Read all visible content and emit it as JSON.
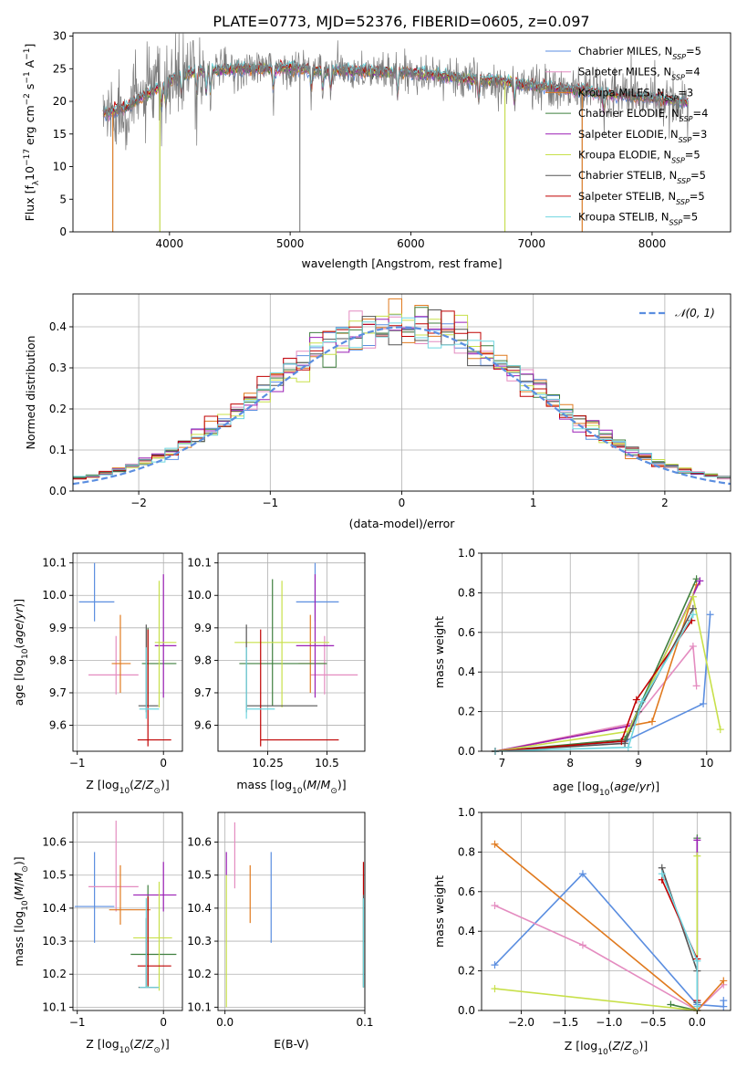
{
  "figure_title": "PLATE=0773, MJD=52376, FIBERID=0605, z=0.097",
  "colors": {
    "Chabrier MILES": "#5b8ee0",
    "Salpeter MILES": "#e48cc0",
    "Kroupa MILES": "#e07a1f",
    "Chabrier ELODIE": "#3f7f3f",
    "Salpeter ELODIE": "#9b1fb5",
    "Kroupa ELODIE": "#c8e04a",
    "Chabrier STELIB": "#555555",
    "Salpeter STELIB": "#c00000",
    "Kroupa STELIB": "#6fd6e0",
    "gaussian": "#5b8ee0"
  },
  "chart_data": [
    {
      "id": "spectrum",
      "type": "line",
      "title": "PLATE=0773, MJD=52376, FIBERID=0605, z=0.097",
      "xlabel": "wavelength [Angstrom, rest frame]",
      "ylabel": "Flux [f_λ 10^-17 erg cm^-2 s^-1 A^-1]",
      "xlim": [
        3200,
        8650
      ],
      "ylim": [
        0,
        30.5
      ],
      "xticks": [
        4000,
        5000,
        6000,
        7000,
        8000
      ],
      "yticks": [
        0,
        5,
        10,
        15,
        20,
        25,
        30
      ],
      "legend_position": "top-right",
      "legend": [
        "Chabrier MILES, N_SSP=5",
        "Salpeter MILES, N_SSP=4",
        "Kroupa MILES, N_SSP=3",
        "Chabrier ELODIE, N_SSP=4",
        "Salpeter ELODIE, N_SSP=3",
        "Kroupa ELODIE, N_SSP=5",
        "Chabrier STELIB, N_SSP=5",
        "Salpeter STELIB, N_SSP=5",
        "Kroupa STELIB, N_SSP=5"
      ],
      "continuum": {
        "x": [
          3450,
          3550,
          3650,
          3750,
          3850,
          3950,
          4050,
          4200,
          4400,
          4600,
          4800,
          5000,
          5200,
          5400,
          5600,
          5800,
          6000,
          6200,
          6400,
          6600,
          6800,
          7000,
          7200,
          7400,
          7600,
          7800,
          8000,
          8200,
          8300
        ],
        "y": [
          18.2,
          18.5,
          19.0,
          20.5,
          21.5,
          22.5,
          23.6,
          24.5,
          24.8,
          25.0,
          25.0,
          25.0,
          24.8,
          24.7,
          24.6,
          24.5,
          24.5,
          24.0,
          23.5,
          23.2,
          23.0,
          22.4,
          22.0,
          21.7,
          21.2,
          20.8,
          20.5,
          20.0,
          19.8
        ]
      },
      "notable_dips": [
        {
          "x": 3530,
          "y": 0
        },
        {
          "x": 3920,
          "y": 0
        },
        {
          "x": 5080,
          "y": 0
        },
        {
          "x": 6780,
          "y": 0
        },
        {
          "x": 7420,
          "y": 0
        }
      ]
    },
    {
      "id": "residuals",
      "type": "line",
      "xlabel": "(data-model)/error",
      "ylabel": "Normed distribution",
      "xlim": [
        -2.5,
        2.5
      ],
      "ylim": [
        0,
        0.48
      ],
      "xticks": [
        -2,
        -1,
        0,
        1,
        2
      ],
      "yticks": [
        0.0,
        0.1,
        0.2,
        0.3,
        0.4
      ],
      "legend_position": "top-right",
      "legend": [
        "N(0,1)"
      ],
      "gaussian_sigma": 1.0,
      "bins": 50
    },
    {
      "id": "age_vs_Z",
      "type": "scatter",
      "xlabel": "Z [log10(Z/Z_sun)]",
      "ylabel": "age [log10(age/yr)]",
      "xlim": [
        -1.05,
        0.22
      ],
      "ylim": [
        9.52,
        10.13
      ],
      "xticks": [
        -1,
        0
      ],
      "yticks": [
        9.6,
        9.7,
        9.8,
        9.9,
        10.0,
        10.1
      ],
      "points": [
        {
          "model": "Chabrier MILES",
          "x": -0.8,
          "xerr": [
            0.18,
            0.23
          ],
          "y": 9.98,
          "yerr": [
            0.06,
            0.12
          ]
        },
        {
          "model": "Salpeter MILES",
          "x": -0.55,
          "xerr": [
            0.32,
            0.26
          ],
          "y": 9.755,
          "yerr": [
            0.06,
            0.12
          ]
        },
        {
          "model": "Kroupa MILES",
          "x": -0.5,
          "xerr": [
            0.1,
            0.12
          ],
          "y": 9.79,
          "yerr": [
            0.09,
            0.15
          ]
        },
        {
          "model": "Chabrier ELODIE",
          "x": -0.18,
          "xerr": [
            0.07,
            0.33
          ],
          "y": 9.79,
          "yerr": [
            0.13,
            0.11
          ]
        },
        {
          "model": "Salpeter ELODIE",
          "x": 0.0,
          "xerr": [
            0.1,
            0.15
          ],
          "y": 9.845,
          "yerr": [
            0.16,
            0.22
          ]
        },
        {
          "model": "Kroupa ELODIE",
          "x": -0.05,
          "xerr": [
            0.05,
            0.2
          ],
          "y": 9.855,
          "yerr": [
            0.2,
            0.19
          ]
        },
        {
          "model": "Chabrier STELIB",
          "x": -0.2,
          "xerr": [
            0.09,
            0.14
          ],
          "y": 9.66,
          "yerr": [
            0.02,
            0.25
          ]
        },
        {
          "model": "Salpeter STELIB",
          "x": -0.18,
          "xerr": [
            0.12,
            0.27
          ],
          "y": 9.555,
          "yerr": [
            0.02,
            0.34
          ]
        },
        {
          "model": "Kroupa STELIB",
          "x": -0.2,
          "xerr": [
            0.08,
            0.15
          ],
          "y": 9.65,
          "yerr": [
            0.03,
            0.19
          ]
        }
      ]
    },
    {
      "id": "age_vs_mass",
      "type": "scatter",
      "xlabel": "mass [log10(M/M_sun)]",
      "ylabel": "",
      "xlim": [
        10.04,
        10.66
      ],
      "ylim": [
        9.52,
        10.13
      ],
      "xticks": [
        10.25,
        10.5
      ],
      "yticks": [
        9.6,
        9.7,
        9.8,
        9.9,
        10.0,
        10.1
      ],
      "points": [
        {
          "model": "Chabrier MILES",
          "x": 10.45,
          "xerr": [
            0.08,
            0.1
          ],
          "y": 9.98,
          "yerr": [
            0.06,
            0.12
          ]
        },
        {
          "model": "Salpeter MILES",
          "x": 10.49,
          "xerr": [
            0.06,
            0.14
          ],
          "y": 9.755,
          "yerr": [
            0.06,
            0.12
          ]
        },
        {
          "model": "Kroupa MILES",
          "x": 10.43,
          "xerr": [
            0.05,
            0.06
          ],
          "y": 9.79,
          "yerr": [
            0.09,
            0.15
          ]
        },
        {
          "model": "Chabrier ELODIE",
          "x": 10.27,
          "xerr": [
            0.14,
            0.23
          ],
          "y": 9.79,
          "yerr": [
            0.13,
            0.26
          ]
        },
        {
          "model": "Salpeter ELODIE",
          "x": 10.45,
          "xerr": [
            0.08,
            0.08
          ],
          "y": 9.845,
          "yerr": [
            0.16,
            0.22
          ]
        },
        {
          "model": "Kroupa ELODIE",
          "x": 10.31,
          "xerr": [
            0.2,
            0.2
          ],
          "y": 9.855,
          "yerr": [
            0.2,
            0.19
          ]
        },
        {
          "model": "Chabrier STELIB",
          "x": 10.16,
          "xerr": [
            0.0,
            0.3
          ],
          "y": 9.66,
          "yerr": [
            0.02,
            0.25
          ]
        },
        {
          "model": "Salpeter STELIB",
          "x": 10.22,
          "xerr": [
            0.0,
            0.33
          ],
          "y": 9.555,
          "yerr": [
            0.02,
            0.34
          ]
        },
        {
          "model": "Kroupa STELIB",
          "x": 10.16,
          "xerr": [
            0.0,
            0.12
          ],
          "y": 9.65,
          "yerr": [
            0.03,
            0.19
          ]
        }
      ]
    },
    {
      "id": "mass_weight_vs_age",
      "type": "line",
      "xlabel": "age [log10(age/yr)]",
      "ylabel": "mass weight",
      "xlim": [
        6.7,
        10.35
      ],
      "ylim": [
        0,
        1.0
      ],
      "xticks": [
        7,
        8,
        9,
        10
      ],
      "yticks": [
        0.0,
        0.2,
        0.4,
        0.6,
        0.8,
        1.0
      ],
      "series": [
        {
          "model": "Chabrier MILES",
          "x": [
            6.9,
            8.8,
            9.95,
            10.05
          ],
          "y": [
            0.0,
            0.05,
            0.24,
            0.69
          ]
        },
        {
          "model": "Salpeter MILES",
          "x": [
            6.9,
            8.9,
            9.8,
            9.85
          ],
          "y": [
            0.0,
            0.14,
            0.53,
            0.33
          ]
        },
        {
          "model": "Kroupa MILES",
          "x": [
            6.9,
            9.2,
            9.85
          ],
          "y": [
            0.0,
            0.15,
            0.84
          ]
        },
        {
          "model": "Chabrier ELODIE",
          "x": [
            6.9,
            8.8,
            9.85
          ],
          "y": [
            0.0,
            0.06,
            0.87
          ]
        },
        {
          "model": "Salpeter ELODIE",
          "x": [
            6.9,
            8.9,
            9.9
          ],
          "y": [
            0.0,
            0.13,
            0.86
          ]
        },
        {
          "model": "Kroupa ELODIE",
          "x": [
            6.9,
            8.85,
            9.8,
            10.2
          ],
          "y": [
            0.0,
            0.1,
            0.78,
            0.11
          ]
        },
        {
          "model": "Chabrier STELIB",
          "x": [
            6.9,
            8.8,
            9.0,
            9.8
          ],
          "y": [
            0.0,
            0.04,
            0.2,
            0.72
          ]
        },
        {
          "model": "Salpeter STELIB",
          "x": [
            6.9,
            8.75,
            8.97,
            9.78
          ],
          "y": [
            0.0,
            0.05,
            0.26,
            0.66
          ]
        },
        {
          "model": "Kroupa STELIB",
          "x": [
            6.9,
            8.85,
            9.05,
            9.8
          ],
          "y": [
            0.0,
            0.02,
            0.25,
            0.69
          ]
        }
      ]
    },
    {
      "id": "mass_vs_Z",
      "type": "scatter",
      "xlabel": "Z [log10(Z/Z_sun)]",
      "ylabel": "mass [log10(M/M_sun)]",
      "xlim": [
        -1.05,
        0.22
      ],
      "ylim": [
        10.09,
        10.69
      ],
      "xticks": [
        -1,
        0
      ],
      "yticks": [
        10.1,
        10.2,
        10.3,
        10.4,
        10.5,
        10.6
      ],
      "points": [
        {
          "model": "Chabrier MILES",
          "x": -0.8,
          "xerr": [
            0.23,
            0.23
          ],
          "y": 10.405,
          "yerr": [
            0.11,
            0.165
          ]
        },
        {
          "model": "Salpeter MILES",
          "x": -0.55,
          "xerr": [
            0.32,
            0.26
          ],
          "y": 10.465,
          "yerr": [
            0.075,
            0.2
          ]
        },
        {
          "model": "Kroupa MILES",
          "x": -0.5,
          "xerr": [
            0.13,
            0.35
          ],
          "y": 10.395,
          "yerr": [
            0.045,
            0.135
          ]
        },
        {
          "model": "Chabrier ELODIE",
          "x": -0.18,
          "xerr": [
            0.2,
            0.33
          ],
          "y": 10.26,
          "yerr": [
            0.1,
            0.21
          ]
        },
        {
          "model": "Salpeter ELODIE",
          "x": 0.0,
          "xerr": [
            0.35,
            0.15
          ],
          "y": 10.44,
          "yerr": [
            0.05,
            0.1
          ]
        },
        {
          "model": "Kroupa ELODIE",
          "x": -0.05,
          "xerr": [
            0.3,
            0.15
          ],
          "y": 10.31,
          "yerr": [
            0.16,
            0.17
          ]
        },
        {
          "model": "Chabrier STELIB",
          "x": -0.2,
          "xerr": [
            0.09,
            0.14
          ],
          "y": 10.16,
          "yerr": [
            0.0,
            0.21
          ]
        },
        {
          "model": "Salpeter STELIB",
          "x": -0.18,
          "xerr": [
            0.12,
            0.27
          ],
          "y": 10.225,
          "yerr": [
            0.06,
            0.21
          ]
        },
        {
          "model": "Kroupa STELIB",
          "x": -0.2,
          "xerr": [
            0.08,
            0.15
          ],
          "y": 10.16,
          "yerr": [
            0.0,
            0.27
          ]
        }
      ]
    },
    {
      "id": "mass_vs_ebv",
      "type": "scatter",
      "xlabel": "E(B-V)",
      "ylabel": "",
      "xlim": [
        -0.005,
        0.1
      ],
      "ylim": [
        10.09,
        10.69
      ],
      "xticks": [
        0.0,
        0.1
      ],
      "yticks": [
        10.1,
        10.2,
        10.3,
        10.4,
        10.5,
        10.6
      ],
      "points": [
        {
          "model": "Chabrier MILES",
          "x": 0.033,
          "y": 10.405,
          "yerr": [
            0.11,
            0.165
          ]
        },
        {
          "model": "Salpeter MILES",
          "x": 0.007,
          "y": 10.56,
          "yerr": [
            0.1,
            0.1
          ]
        },
        {
          "model": "Kroupa MILES",
          "x": 0.018,
          "y": 10.44,
          "yerr": [
            0.085,
            0.09
          ]
        },
        {
          "model": "Chabrier ELODIE",
          "x": 0.099,
          "y": 10.26,
          "yerr": [
            0.1,
            0.17
          ]
        },
        {
          "model": "Salpeter ELODIE",
          "x": 0.001,
          "y": 10.53,
          "yerr": [
            0.03,
            0.04
          ]
        },
        {
          "model": "Kroupa ELODIE",
          "x": 0.001,
          "y": 10.3,
          "yerr": [
            0.2,
            0.2
          ]
        },
        {
          "model": "Chabrier STELIB",
          "x": 0.099,
          "y": 10.3,
          "yerr": [
            0.14,
            0.14
          ]
        },
        {
          "model": "Salpeter STELIB",
          "x": 0.099,
          "y": 10.49,
          "yerr": [
            0.05,
            0.05
          ]
        },
        {
          "model": "Kroupa STELIB",
          "x": 0.099,
          "y": 10.29,
          "yerr": [
            0.13,
            0.14
          ]
        }
      ]
    },
    {
      "id": "mass_weight_vs_Z",
      "type": "line",
      "xlabel": "Z [log10(Z/Z_sun)]",
      "ylabel": "mass weight",
      "xlim": [
        -2.45,
        0.38
      ],
      "ylim": [
        0,
        1.0
      ],
      "xticks": [
        -2.0,
        -1.5,
        -1.0,
        -0.5,
        0.0
      ],
      "yticks": [
        0.0,
        0.2,
        0.4,
        0.6,
        0.8,
        1.0
      ],
      "series": [
        {
          "model": "Chabrier MILES",
          "x": [
            -2.3,
            -1.3,
            0.0,
            0.3,
            0.3
          ],
          "y": [
            0.23,
            0.69,
            0.03,
            0.02,
            0.05
          ]
        },
        {
          "model": "Salpeter MILES",
          "x": [
            -2.3,
            -1.3,
            0.0,
            0.3
          ],
          "y": [
            0.53,
            0.33,
            0.0,
            0.13
          ]
        },
        {
          "model": "Kroupa MILES",
          "x": [
            -2.3,
            0.0,
            0.3
          ],
          "y": [
            0.84,
            0.0,
            0.15
          ]
        },
        {
          "model": "Chabrier ELODIE",
          "x": [
            -0.3,
            0.0,
            0.0
          ],
          "y": [
            0.03,
            0.0,
            0.87
          ]
        },
        {
          "model": "Salpeter ELODIE",
          "x": [
            0.0,
            0.0
          ],
          "y": [
            0.0,
            0.86
          ]
        },
        {
          "model": "Kroupa ELODIE",
          "x": [
            -2.3,
            0.0,
            0.0
          ],
          "y": [
            0.11,
            0.0,
            0.78
          ]
        },
        {
          "model": "Chabrier STELIB",
          "x": [
            -0.4,
            0.0,
            0.0
          ],
          "y": [
            0.72,
            0.2,
            0.04
          ]
        },
        {
          "model": "Salpeter STELIB",
          "x": [
            -0.4,
            0.0,
            0.0
          ],
          "y": [
            0.66,
            0.26,
            0.05
          ]
        },
        {
          "model": "Kroupa STELIB",
          "x": [
            -0.4,
            0.0,
            0.0
          ],
          "y": [
            0.69,
            0.25,
            0.02
          ]
        }
      ]
    }
  ]
}
